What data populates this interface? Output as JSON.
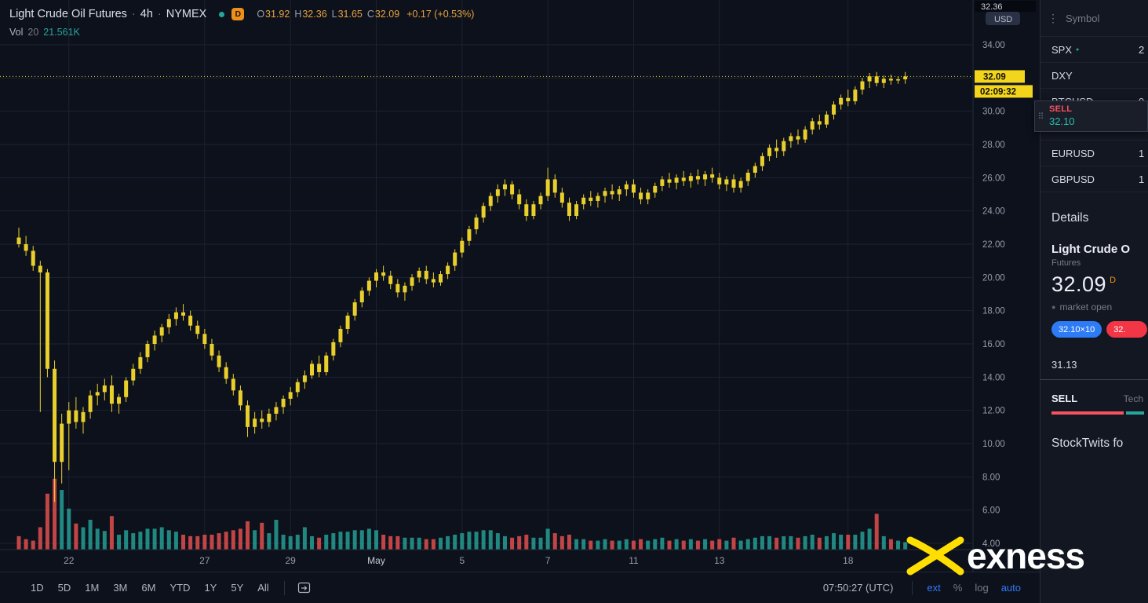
{
  "colors": {
    "background": "#0d111c",
    "panel": "#131722",
    "grid": "#1b2233",
    "candle": "#e9cf2c",
    "tag_yellow": "#f3d51b",
    "teal": "#26a69a",
    "red": "#f7525f",
    "blue": "#2e7bf6",
    "amber": "#e8a33d",
    "orange_badge": "#ef8e19"
  },
  "icons": {
    "drag_handle": "⠿",
    "kebab": "⋮",
    "dot": "●",
    "live_dot": "●"
  },
  "legend": {
    "title": "Light Crude Oil Futures",
    "sep": "·",
    "interval": "4h",
    "exchange": "NYMEX",
    "marker_d": "D",
    "ohlc": [
      {
        "label": "O",
        "value": "31.92"
      },
      {
        "label": "H",
        "value": "32.36"
      },
      {
        "label": "L",
        "value": "31.65"
      },
      {
        "label": "C",
        "value": "32.09"
      }
    ],
    "change": "+0.17 (+0.53%)",
    "vol_label": "Vol",
    "vol_param": "20",
    "vol_value": "21.561K"
  },
  "price_axis": {
    "currency": "USD",
    "top_value": "32.36",
    "labels": [
      34,
      30,
      28,
      26,
      24,
      22,
      20,
      18,
      16,
      14,
      12,
      10,
      8,
      6,
      4
    ],
    "last_price": "32.09",
    "countdown": "02:09:32"
  },
  "toolbar": {
    "ranges": [
      "1D",
      "5D",
      "1M",
      "3M",
      "6M",
      "YTD",
      "1Y",
      "5Y",
      "All"
    ],
    "clock": "07:50:27 (UTC)",
    "scales": [
      {
        "label": "ext",
        "active": true
      },
      {
        "label": "%",
        "active": false
      },
      {
        "label": "log",
        "active": false
      },
      {
        "label": "auto",
        "active": true
      }
    ]
  },
  "watchlist": {
    "header": "Symbol",
    "rows": [
      {
        "symbol": "SPX",
        "dot": true,
        "value": "2"
      },
      {
        "symbol": "DXY",
        "dot": false,
        "value": ""
      },
      {
        "symbol": "BTCUSD",
        "dot": false,
        "value": "9"
      },
      {
        "symbol": "",
        "dot": false,
        "value": ""
      },
      {
        "symbol": "EURUSD",
        "dot": false,
        "value": "1"
      },
      {
        "symbol": "GBPUSD",
        "dot": false,
        "value": "1"
      }
    ]
  },
  "sell_widget": {
    "action": "SELL",
    "price": "32.10"
  },
  "details": {
    "heading": "Details",
    "name": "Light Crude O",
    "type": "Futures",
    "price": "32.09",
    "price_flag": "D",
    "status": "market open",
    "bid_button": "32.10×10",
    "ask_button": "32.",
    "stat": "31.13",
    "signal": "SELL",
    "signal_note": "Tech"
  },
  "stocktwits": {
    "heading": "StockTwits fo"
  },
  "logo": {
    "text": "exness"
  },
  "chart_data": {
    "type": "candlestick",
    "title": "Light Crude Oil Futures",
    "interval": "4h",
    "exchange": "NYMEX",
    "ohlc_legend": {
      "open": 31.92,
      "high": 32.36,
      "low": 31.65,
      "close": 32.09,
      "change": "+0.17 (+0.53%)"
    },
    "volume_legend": {
      "ma_period": 20,
      "value": "21.561K"
    },
    "last_price": 32.09,
    "countdown": "02:09:32",
    "y_axis": {
      "min": 4,
      "max": 34,
      "step": 2,
      "currency": "USD"
    },
    "x_ticks": [
      {
        "label": "22",
        "i": 7
      },
      {
        "label": "27",
        "i": 26
      },
      {
        "label": "29",
        "i": 38
      },
      {
        "label": "May",
        "i": 50
      },
      {
        "label": "5",
        "i": 62
      },
      {
        "label": "7",
        "i": 74
      },
      {
        "label": "11",
        "i": 86
      },
      {
        "label": "13",
        "i": 98
      },
      {
        "label": "18",
        "i": 116
      }
    ],
    "candles_format": [
      "open",
      "high",
      "low",
      "close",
      "volume"
    ],
    "candles": [
      [
        22.4,
        23.0,
        21.8,
        22.0,
        18
      ],
      [
        22.0,
        22.5,
        21.3,
        21.6,
        14
      ],
      [
        21.6,
        21.9,
        20.4,
        20.7,
        12
      ],
      [
        20.7,
        21.0,
        11.9,
        20.3,
        30
      ],
      [
        20.3,
        20.5,
        14.0,
        14.5,
        75
      ],
      [
        14.5,
        15.0,
        6.5,
        8.9,
        95
      ],
      [
        8.9,
        11.8,
        7.6,
        11.2,
        80
      ],
      [
        11.2,
        12.5,
        8.4,
        12.0,
        55
      ],
      [
        12.0,
        12.8,
        10.9,
        11.3,
        35
      ],
      [
        11.3,
        12.2,
        10.6,
        11.9,
        30
      ],
      [
        11.9,
        13.2,
        11.5,
        12.9,
        40
      ],
      [
        12.9,
        13.6,
        12.3,
        13.1,
        28
      ],
      [
        13.1,
        13.9,
        12.6,
        13.5,
        25
      ],
      [
        13.5,
        14.1,
        11.9,
        12.4,
        45
      ],
      [
        12.4,
        13.0,
        11.8,
        12.8,
        20
      ],
      [
        12.8,
        14.0,
        12.5,
        13.8,
        26
      ],
      [
        13.8,
        14.8,
        13.5,
        14.5,
        22
      ],
      [
        14.5,
        15.5,
        14.2,
        15.2,
        24
      ],
      [
        15.2,
        16.2,
        14.9,
        16.0,
        28
      ],
      [
        16.0,
        16.8,
        15.6,
        16.5,
        28
      ],
      [
        16.5,
        17.2,
        16.1,
        17.0,
        30
      ],
      [
        17.0,
        17.8,
        16.6,
        17.5,
        26
      ],
      [
        17.5,
        18.2,
        17.1,
        17.9,
        24
      ],
      [
        17.9,
        18.4,
        17.4,
        17.7,
        20
      ],
      [
        17.7,
        18.0,
        16.8,
        17.1,
        18
      ],
      [
        17.1,
        17.4,
        16.3,
        16.6,
        18
      ],
      [
        16.6,
        16.9,
        15.7,
        16.0,
        20
      ],
      [
        16.0,
        16.3,
        15.0,
        15.3,
        20
      ],
      [
        15.3,
        15.6,
        14.3,
        14.6,
        22
      ],
      [
        14.6,
        14.9,
        13.6,
        13.9,
        24
      ],
      [
        13.9,
        14.2,
        12.9,
        13.2,
        26
      ],
      [
        13.2,
        13.5,
        12.0,
        12.3,
        28
      ],
      [
        12.3,
        12.6,
        10.4,
        11.0,
        38
      ],
      [
        11.0,
        11.9,
        10.6,
        11.5,
        26
      ],
      [
        11.5,
        12.0,
        10.9,
        11.3,
        36
      ],
      [
        11.3,
        12.1,
        11.0,
        11.8,
        22
      ],
      [
        11.8,
        12.5,
        11.4,
        12.2,
        40
      ],
      [
        12.2,
        12.9,
        11.8,
        12.7,
        20
      ],
      [
        12.7,
        13.4,
        12.3,
        13.1,
        18
      ],
      [
        13.1,
        13.9,
        12.8,
        13.7,
        20
      ],
      [
        13.7,
        14.4,
        13.3,
        14.1,
        30
      ],
      [
        14.1,
        15.0,
        13.9,
        14.8,
        18
      ],
      [
        14.8,
        15.3,
        14.0,
        14.3,
        16
      ],
      [
        14.3,
        15.5,
        14.1,
        15.3,
        20
      ],
      [
        15.3,
        16.3,
        15.0,
        16.1,
        22
      ],
      [
        16.1,
        17.1,
        15.8,
        16.9,
        24
      ],
      [
        16.9,
        17.9,
        16.6,
        17.7,
        24
      ],
      [
        17.7,
        18.7,
        17.4,
        18.5,
        26
      ],
      [
        18.5,
        19.4,
        18.2,
        19.2,
        26
      ],
      [
        19.2,
        20.0,
        18.9,
        19.8,
        28
      ],
      [
        19.8,
        20.5,
        19.4,
        20.3,
        26
      ],
      [
        20.3,
        20.7,
        19.8,
        20.1,
        20
      ],
      [
        20.1,
        20.4,
        19.3,
        19.6,
        18
      ],
      [
        19.6,
        19.9,
        18.8,
        19.1,
        18
      ],
      [
        19.1,
        19.7,
        18.6,
        19.5,
        16
      ],
      [
        19.5,
        20.2,
        19.2,
        20.0,
        16
      ],
      [
        20.0,
        20.6,
        19.7,
        20.4,
        16
      ],
      [
        20.4,
        20.7,
        19.6,
        19.9,
        14
      ],
      [
        19.9,
        20.3,
        19.4,
        19.7,
        14
      ],
      [
        19.7,
        20.4,
        19.5,
        20.2,
        16
      ],
      [
        20.2,
        20.9,
        19.9,
        20.7,
        18
      ],
      [
        20.7,
        21.7,
        20.4,
        21.5,
        20
      ],
      [
        21.5,
        22.4,
        21.2,
        22.2,
        22
      ],
      [
        22.2,
        23.1,
        21.9,
        22.9,
        24
      ],
      [
        22.9,
        23.8,
        22.6,
        23.6,
        24
      ],
      [
        23.6,
        24.5,
        23.3,
        24.3,
        26
      ],
      [
        24.3,
        25.1,
        24.0,
        24.9,
        26
      ],
      [
        24.9,
        25.6,
        24.5,
        25.3,
        22
      ],
      [
        25.3,
        25.9,
        24.9,
        25.6,
        18
      ],
      [
        25.6,
        25.8,
        24.7,
        25.0,
        16
      ],
      [
        25.0,
        25.3,
        24.1,
        24.4,
        18
      ],
      [
        24.4,
        24.7,
        23.4,
        23.7,
        20
      ],
      [
        23.7,
        24.6,
        23.5,
        24.4,
        16
      ],
      [
        24.4,
        25.1,
        24.1,
        24.9,
        16
      ],
      [
        24.9,
        26.6,
        24.6,
        25.9,
        28
      ],
      [
        25.9,
        26.2,
        24.8,
        25.1,
        22
      ],
      [
        25.1,
        25.4,
        24.2,
        24.5,
        18
      ],
      [
        24.5,
        24.8,
        23.4,
        23.7,
        20
      ],
      [
        23.7,
        24.6,
        23.5,
        24.4,
        14
      ],
      [
        24.4,
        25.0,
        24.1,
        24.8,
        14
      ],
      [
        24.8,
        25.2,
        24.3,
        24.6,
        12
      ],
      [
        24.6,
        25.1,
        24.2,
        24.9,
        12
      ],
      [
        24.9,
        25.4,
        24.5,
        25.2,
        14
      ],
      [
        25.2,
        25.6,
        24.7,
        25.0,
        12
      ],
      [
        25.0,
        25.5,
        24.6,
        25.3,
        12
      ],
      [
        25.3,
        25.8,
        24.9,
        25.6,
        14
      ],
      [
        25.6,
        25.9,
        24.8,
        25.1,
        12
      ],
      [
        25.1,
        25.4,
        24.4,
        24.7,
        14
      ],
      [
        24.7,
        25.3,
        24.4,
        25.1,
        12
      ],
      [
        25.1,
        25.7,
        24.8,
        25.5,
        14
      ],
      [
        25.5,
        26.1,
        25.2,
        25.9,
        16
      ],
      [
        25.9,
        26.3,
        25.4,
        25.7,
        12
      ],
      [
        25.7,
        26.2,
        25.3,
        26.0,
        14
      ],
      [
        26.0,
        26.4,
        25.5,
        25.8,
        12
      ],
      [
        25.8,
        26.3,
        25.4,
        26.1,
        14
      ],
      [
        26.1,
        26.5,
        25.6,
        25.9,
        12
      ],
      [
        25.9,
        26.4,
        25.5,
        26.2,
        14
      ],
      [
        26.2,
        26.6,
        25.7,
        26.0,
        12
      ],
      [
        26.0,
        26.3,
        25.3,
        25.6,
        14
      ],
      [
        25.6,
        26.1,
        25.2,
        25.9,
        12
      ],
      [
        25.9,
        26.2,
        25.1,
        25.4,
        16
      ],
      [
        25.4,
        26.0,
        25.1,
        25.8,
        12
      ],
      [
        25.8,
        26.5,
        25.5,
        26.3,
        14
      ],
      [
        26.3,
        26.9,
        26.0,
        26.7,
        16
      ],
      [
        26.7,
        27.5,
        26.4,
        27.3,
        18
      ],
      [
        27.3,
        28.0,
        27.0,
        27.8,
        18
      ],
      [
        27.8,
        28.3,
        27.2,
        27.6,
        16
      ],
      [
        27.6,
        28.4,
        27.3,
        28.2,
        18
      ],
      [
        28.2,
        28.7,
        27.8,
        28.5,
        18
      ],
      [
        28.5,
        28.9,
        28.0,
        28.3,
        16
      ],
      [
        28.3,
        29.1,
        28.1,
        28.9,
        18
      ],
      [
        28.9,
        29.6,
        28.6,
        29.4,
        20
      ],
      [
        29.4,
        29.8,
        28.9,
        29.2,
        16
      ],
      [
        29.2,
        30.0,
        29.0,
        29.8,
        18
      ],
      [
        29.8,
        30.6,
        29.5,
        30.4,
        22
      ],
      [
        30.4,
        31.0,
        30.1,
        30.8,
        20
      ],
      [
        30.8,
        31.3,
        30.3,
        30.6,
        20
      ],
      [
        30.6,
        31.5,
        30.4,
        31.3,
        20
      ],
      [
        31.3,
        32.0,
        31.0,
        31.8,
        24
      ],
      [
        31.8,
        32.3,
        31.4,
        32.1,
        28
      ],
      [
        32.1,
        32.36,
        31.5,
        31.7,
        48
      ],
      [
        31.7,
        32.15,
        31.4,
        31.95,
        18
      ],
      [
        31.95,
        32.2,
        31.6,
        31.85,
        14
      ],
      [
        31.85,
        32.1,
        31.65,
        31.92,
        12
      ],
      [
        31.92,
        32.36,
        31.65,
        32.09,
        10
      ]
    ]
  }
}
